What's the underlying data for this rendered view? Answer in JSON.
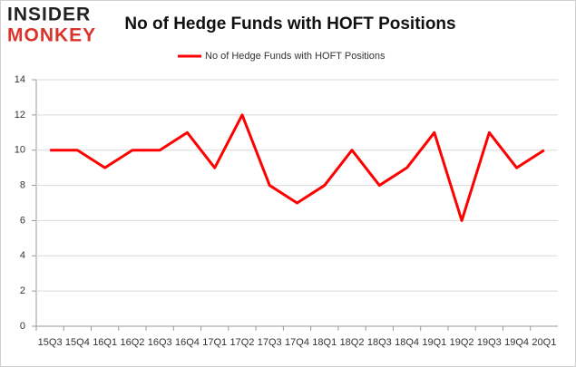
{
  "logo": [
    "INSIDER",
    "MONKEY"
  ],
  "chart_data": {
    "type": "line",
    "title": "No of Hedge Funds with HOFT Positions",
    "categories": [
      "15Q3",
      "15Q4",
      "16Q1",
      "16Q2",
      "16Q3",
      "16Q4",
      "17Q1",
      "17Q2",
      "17Q3",
      "17Q4",
      "18Q1",
      "18Q2",
      "18Q3",
      "18Q4",
      "19Q1",
      "19Q2",
      "19Q3",
      "19Q4",
      "20Q1"
    ],
    "series": [
      {
        "name": "No of Hedge Funds with HOFT Positions",
        "color": "#ff0000",
        "values": [
          10,
          10,
          9,
          10,
          10,
          11,
          9,
          12,
          8,
          7,
          8,
          10,
          8,
          9,
          11,
          6,
          11,
          9,
          10
        ]
      }
    ],
    "ylim": [
      0,
      14
    ],
    "yticks": [
      0,
      2,
      4,
      6,
      8,
      10,
      12,
      14
    ],
    "grid": true,
    "legend": "top"
  }
}
